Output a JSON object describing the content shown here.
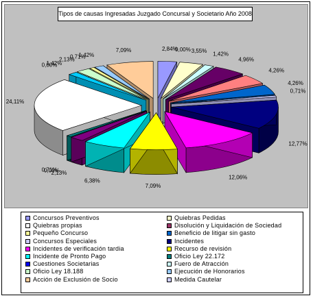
{
  "chart_data": {
    "type": "pie",
    "title": "Tipos de causas Ingresadas Juzgado Concursal y Societario Año 2008",
    "categories": [
      "Concursos Preventivos",
      "Quiebras Pedidas",
      "Quiebras propias",
      "Disolución y Liquidación de Sociedad",
      "Pequeño Concurso",
      "Beneficio de litigar sin gasto",
      "Concursos Especiales",
      "Incidentes",
      "Incidentes de verificación tardia",
      "Recurso de revisión",
      "Incidente de Pronto Pago",
      "Oficio Ley 22.172",
      "Cuestiones Societarias",
      "Fuero de Atracción",
      "Oficio Ley 18.188",
      "Ejecución de Honorarios",
      "Acción de Exclusión de Socio",
      "Medida Cautelar"
    ],
    "slice_values": [
      2.84,
      0.0,
      3.55,
      1.42,
      4.96,
      4.26,
      4.26,
      0.71,
      12.77,
      12.06,
      7.09,
      6.38,
      2.13,
      0.0,
      0.71,
      24.11,
      0.0,
      1.42,
      2.13,
      0.71,
      1.42,
      7.09
    ],
    "slice_labels": [
      "2,84%",
      "0,00%",
      "3,55%",
      "1,42%",
      "4,96%",
      "4,26%",
      "4,26%",
      "0,71%",
      "12,77%",
      "12,06%",
      "7,09%",
      "6,38%",
      "2,13%",
      "0,00%",
      "0,71%",
      "24,11%",
      "0,00%",
      "1,42%",
      "2,13%",
      "0,71%",
      "1,42%",
      "7,09%"
    ],
    "slice_colors": [
      "#9999ff",
      "#993366",
      "#ffffcc",
      "#ccffff",
      "#660066",
      "#ff8080",
      "#0066cc",
      "#ccccff",
      "#000080",
      "#ff00ff",
      "#ffff00",
      "#00ffff",
      "#800080",
      "#800000",
      "#008080",
      "#ffffff",
      "#0000ff",
      "#00ccff",
      "#ccffcc",
      "#ffff99",
      "#99ccff",
      "#ffcc99"
    ],
    "legend_position": "bottom",
    "legend_colors": [
      "#9999ff",
      "#ffffcc",
      "#ffffff",
      "#993366",
      "#ffff99",
      "#0066cc",
      "#ccccff",
      "#000080",
      "#ff00ff",
      "#ffff00",
      "#00ffff",
      "#008080",
      "#0000ff",
      "#ccffff",
      "#ccffcc",
      "#99ccff",
      "#ffcc99",
      "#ccccff"
    ]
  }
}
